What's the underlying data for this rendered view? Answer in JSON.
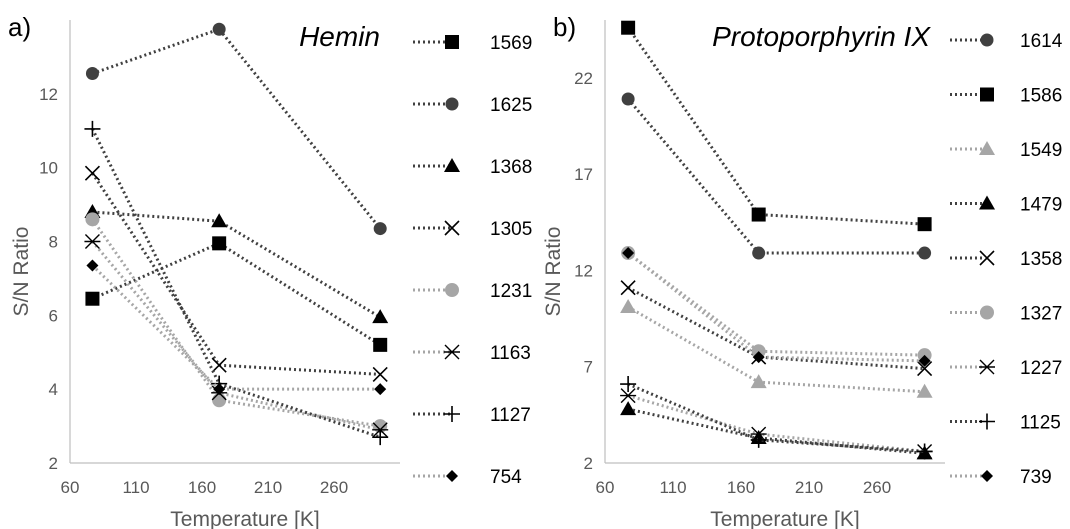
{
  "chart_data": [
    {
      "type": "line",
      "panel_label": "a)",
      "title": "Hemin",
      "xlabel": "Temperature [K]",
      "ylabel": "S/N Ratio",
      "xlim": [
        60,
        310
      ],
      "ylim": [
        2,
        14
      ],
      "xticks": [
        "60",
        "110",
        "160",
        "210",
        "260"
      ],
      "yticks": [
        "2",
        "4",
        "6",
        "8",
        "10",
        "12"
      ],
      "x": [
        77,
        173,
        295
      ],
      "grid": false,
      "legend_position": "right",
      "series": [
        {
          "name": "1569",
          "marker": "square",
          "color": "#404040",
          "values": [
            6.45,
            7.95,
            5.2
          ]
        },
        {
          "name": "1625",
          "marker": "circle",
          "color": "#404040",
          "values": [
            12.55,
            13.75,
            8.35
          ]
        },
        {
          "name": "1368",
          "marker": "triangle",
          "color": "#404040",
          "values": [
            8.8,
            8.55,
            5.95
          ]
        },
        {
          "name": "1305",
          "marker": "x",
          "color": "#404040",
          "values": [
            9.85,
            4.65,
            4.4
          ]
        },
        {
          "name": "1231",
          "marker": "circle-light",
          "color": "#a6a6a6",
          "values": [
            8.6,
            3.7,
            3.0
          ]
        },
        {
          "name": "1163",
          "marker": "asterisk",
          "color": "#a6a6a6",
          "values": [
            8.0,
            3.9,
            2.9
          ]
        },
        {
          "name": "1127",
          "marker": "plus",
          "color": "#404040",
          "values": [
            11.05,
            4.15,
            2.7
          ]
        },
        {
          "name": "754",
          "marker": "diamond",
          "color": "#a6a6a6",
          "values": [
            7.35,
            4.0,
            4.0
          ]
        }
      ]
    },
    {
      "type": "line",
      "panel_label": "b)",
      "title": "Protoporphyrin IX",
      "xlabel": "Temperature [K]",
      "ylabel": "S/N Ratio",
      "xlim": [
        60,
        310
      ],
      "ylim": [
        2,
        25
      ],
      "xticks": [
        "60",
        "110",
        "160",
        "210",
        "260"
      ],
      "yticks": [
        "2",
        "7",
        "12",
        "17",
        "22"
      ],
      "x": [
        77,
        173,
        295
      ],
      "grid": false,
      "legend_position": "right",
      "series": [
        {
          "name": "1614",
          "marker": "circle",
          "color": "#404040",
          "values": [
            20.9,
            12.9,
            12.9
          ]
        },
        {
          "name": "1586",
          "marker": "square",
          "color": "#404040",
          "values": [
            24.6,
            14.9,
            14.4
          ]
        },
        {
          "name": "1549",
          "marker": "triangle-light",
          "color": "#a6a6a6",
          "values": [
            10.1,
            6.2,
            5.7
          ]
        },
        {
          "name": "1479",
          "marker": "triangle",
          "color": "#404040",
          "values": [
            4.8,
            3.3,
            2.5
          ]
        },
        {
          "name": "1358",
          "marker": "x",
          "color": "#404040",
          "values": [
            11.1,
            7.5,
            6.9
          ]
        },
        {
          "name": "1327",
          "marker": "circle-light",
          "color": "#a6a6a6",
          "values": [
            12.9,
            7.8,
            7.6
          ]
        },
        {
          "name": "1227",
          "marker": "asterisk",
          "color": "#a6a6a6",
          "values": [
            5.5,
            3.5,
            2.6
          ]
        },
        {
          "name": "1125",
          "marker": "plus",
          "color": "#404040",
          "values": [
            6.1,
            3.2,
            2.6
          ]
        },
        {
          "name": "739",
          "marker": "diamond",
          "color": "#a6a6a6",
          "values": [
            12.9,
            7.5,
            7.3
          ]
        }
      ]
    }
  ]
}
